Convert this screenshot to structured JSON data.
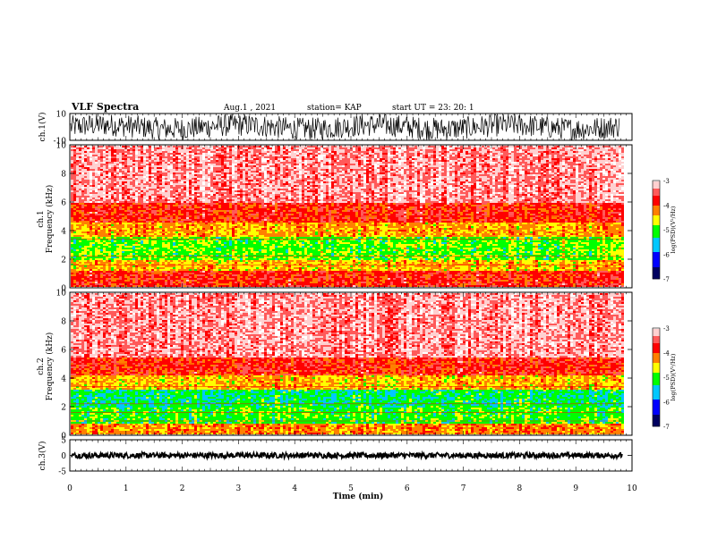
{
  "header": {
    "title": "VLF Spectra",
    "date": "Aug.1 , 2021",
    "station": "station= KAP",
    "start": "start UT = 23: 20: 1"
  },
  "colors": {
    "spectrogram_palette": [
      "#ffffff",
      "#ffd0d0",
      "#ff5a5a",
      "#ff0000",
      "#ff8000",
      "#ffff00",
      "#00ff00",
      "#00c8ff",
      "#0000ff",
      "#000060"
    ],
    "trace": "#000000"
  },
  "chart_data": [
    {
      "type": "line",
      "panel": "ch1-waveform",
      "ylabel": "ch.1(V)",
      "ylim": [
        -10,
        10
      ],
      "yticks": [
        {
          "value": 10,
          "label": "10"
        },
        {
          "value": -10,
          "label": "-10"
        }
      ],
      "xlim": [
        0,
        10
      ],
      "description_of_series": "noisy waveform filling most of the range"
    },
    {
      "type": "heatmap",
      "panel": "ch1-spectrogram",
      "ylabel": "ch.1 Frequency (kHz)",
      "ylabel_line1": "ch.1",
      "ylabel_line2": "Frequency (kHz)",
      "ylim": [
        0,
        10
      ],
      "yticks": [
        0,
        2,
        4,
        6,
        8,
        10
      ],
      "xlim": [
        0,
        9.83
      ],
      "colorbar": {
        "label": "log(PSD)(V²/Hz)",
        "range": [
          -7,
          -3
        ],
        "ticks": [
          -3,
          -4,
          -5,
          -6,
          -7
        ]
      },
      "bands_khz": [
        {
          "from": 0,
          "to": 1.2,
          "level": -3.8
        },
        {
          "from": 1.2,
          "to": 2.0,
          "level": -4.4
        },
        {
          "from": 2.0,
          "to": 3.6,
          "level": -4.9
        },
        {
          "from": 3.6,
          "to": 4.6,
          "level": -4.3
        },
        {
          "from": 4.6,
          "to": 6.0,
          "level": -3.8
        },
        {
          "from": 6.0,
          "to": 10.0,
          "level": -3.3
        }
      ]
    },
    {
      "type": "heatmap",
      "panel": "ch2-spectrogram",
      "ylabel": "ch.2 Frequency (kHz)",
      "ylabel_line1": "ch.2",
      "ylabel_line2": "Frequency (kHz)",
      "ylim": [
        0,
        10
      ],
      "yticks": [
        0,
        2,
        4,
        6,
        8,
        10
      ],
      "xlim": [
        0,
        9.83
      ],
      "colorbar": {
        "label": "log(PSD)(V²/Hz)",
        "range": [
          -7,
          -3
        ],
        "ticks": [
          -3,
          -4,
          -5,
          -6,
          -7
        ]
      },
      "bands_khz": [
        {
          "from": 0,
          "to": 0.8,
          "level": -4.2
        },
        {
          "from": 0.8,
          "to": 2.0,
          "level": -5.0
        },
        {
          "from": 2.0,
          "to": 3.2,
          "level": -5.2
        },
        {
          "from": 3.2,
          "to": 4.2,
          "level": -4.4
        },
        {
          "from": 4.2,
          "to": 5.5,
          "level": -3.8
        },
        {
          "from": 5.5,
          "to": 10.0,
          "level": -3.3
        }
      ]
    },
    {
      "type": "line",
      "panel": "ch3-waveform",
      "ylabel": "ch.3(V)",
      "ylim": [
        -5,
        5
      ],
      "yticks": [
        {
          "value": 5,
          "label": "5"
        },
        {
          "value": 0,
          "label": "0"
        },
        {
          "value": -5,
          "label": "-5"
        }
      ],
      "xlim": [
        0,
        10
      ],
      "description_of_series": "narrow noisy band near 0 V"
    }
  ],
  "xaxis": {
    "label": "Time (min)",
    "ticks": [
      0,
      1,
      2,
      3,
      4,
      5,
      6,
      7,
      8,
      9,
      10
    ],
    "range": [
      0,
      10
    ]
  }
}
